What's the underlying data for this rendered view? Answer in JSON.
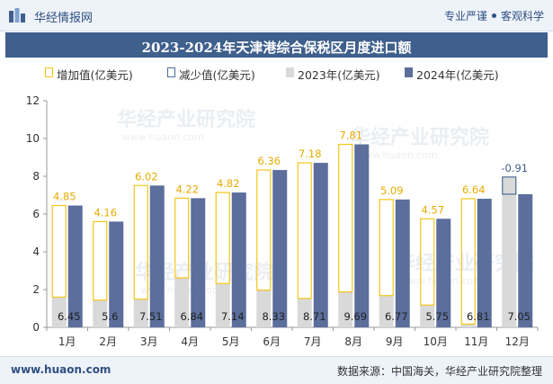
{
  "header": {
    "brand": "华经情报网",
    "slogan_left": "专业严谨",
    "slogan_right": "客观科学"
  },
  "footer": {
    "site": "www.huaon.com",
    "source_label": "数据来源：",
    "source_text": "中国海关，华经产业研究院整理"
  },
  "watermark": {
    "text": "华经产业研究院",
    "url": "www.huaon.com"
  },
  "colors": {
    "increase_border": "#f5c518",
    "decrease_border": "#4a6d96",
    "series_2023": "#d9d9d9",
    "series_2024": "#5b6e9c",
    "accent": "#3f5f8c"
  },
  "chart_data": {
    "type": "bar",
    "title": "2023-2024年天津港综合保税区月度进口额",
    "categories": [
      "1月",
      "2月",
      "3月",
      "4月",
      "5月",
      "6月",
      "7月",
      "8月",
      "9月",
      "10月",
      "11月",
      "12月"
    ],
    "legend_position": "top",
    "legend": [
      "增加值(亿美元)",
      "减少值(亿美元)",
      "2023年(亿美元)",
      "2024年(亿美元)"
    ],
    "series": [
      {
        "name": "2023年(亿美元)",
        "values": [
          1.6,
          1.44,
          1.49,
          2.62,
          2.32,
          1.97,
          1.53,
          1.88,
          1.68,
          1.18,
          0.17,
          7.96
        ]
      },
      {
        "name": "2024年(亿美元)",
        "values": [
          6.45,
          5.6,
          7.51,
          6.84,
          7.14,
          8.33,
          8.71,
          9.69,
          6.77,
          5.75,
          6.81,
          7.05
        ]
      }
    ],
    "change": {
      "increase_name": "增加值(亿美元)",
      "decrease_name": "减少值(亿美元)",
      "values": [
        4.85,
        4.16,
        6.02,
        4.22,
        4.82,
        6.36,
        7.18,
        7.81,
        5.09,
        4.57,
        6.64,
        -0.91
      ]
    },
    "ylim": [
      0,
      12
    ],
    "yticks": [
      0,
      2,
      4,
      6,
      8,
      10,
      12
    ],
    "grid": false
  }
}
